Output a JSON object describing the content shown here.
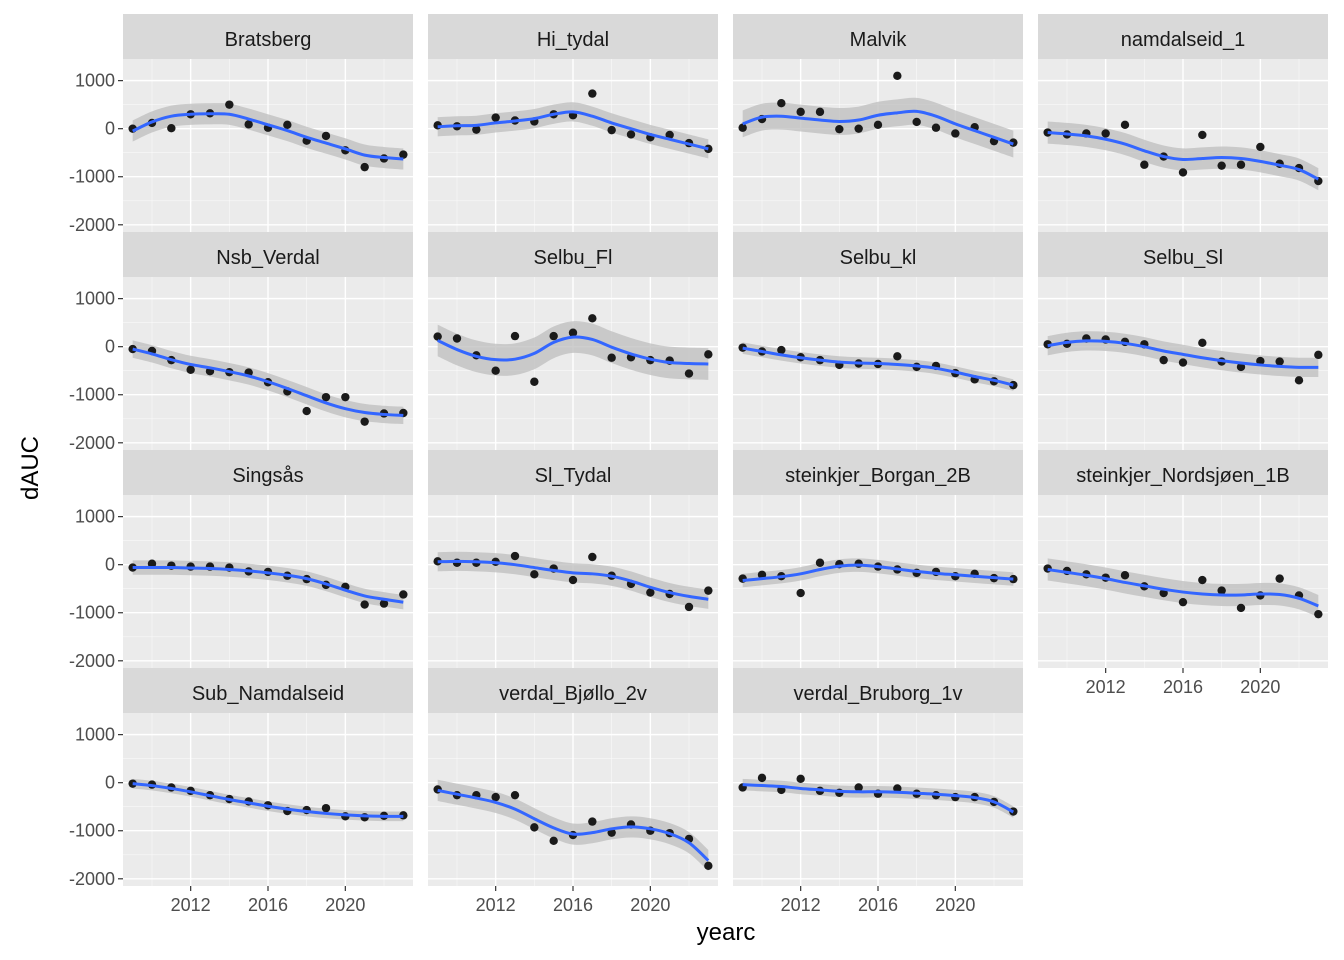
{
  "chart_data": {
    "type": "scatter",
    "facet_layout": "wrap 4 columns",
    "xlabel": "yearc",
    "ylabel": "dAUC",
    "x_ticks": [
      2012,
      2016,
      2020
    ],
    "y_ticks": [
      1000,
      0,
      -1000,
      -2000
    ],
    "xlim": [
      2008.5,
      2023.5
    ],
    "ylim": [
      -2150,
      1450
    ],
    "grid": true,
    "smooth": "loess fit with grey confidence band",
    "colors": {
      "panel_bg": "#ebebeb",
      "strip_bg": "#d9d9d9",
      "grid_major": "#ffffff",
      "points": "#1a1a1a",
      "smooth_line": "#3366ff",
      "ribbon": "#bdbdbd"
    },
    "years": [
      2009,
      2010,
      2011,
      2012,
      2013,
      2014,
      2015,
      2016,
      2017,
      2018,
      2019,
      2020,
      2021,
      2022,
      2023
    ],
    "facets": [
      {
        "name": "Bratsberg",
        "points": [
          0,
          120,
          10,
          300,
          320,
          500,
          90,
          20,
          80,
          -250,
          -150,
          -450,
          -800,
          -620,
          -540
        ],
        "smooth": [
          -50,
          140,
          260,
          300,
          310,
          300,
          200,
          80,
          -40,
          -180,
          -300,
          -420,
          -550,
          -600,
          -630
        ],
        "band": 220
      },
      {
        "name": "Hi_tydal",
        "points": [
          70,
          50,
          -20,
          230,
          170,
          150,
          300,
          280,
          730,
          -30,
          -120,
          -180,
          -130,
          -300,
          -420
        ],
        "smooth": [
          40,
          60,
          70,
          120,
          160,
          210,
          300,
          350,
          260,
          120,
          0,
          -120,
          -220,
          -320,
          -420
        ],
        "band": 200
      },
      {
        "name": "Malvik",
        "points": [
          20,
          200,
          530,
          350,
          350,
          -10,
          0,
          80,
          1100,
          140,
          20,
          -100,
          30,
          -260,
          -290
        ],
        "smooth": [
          100,
          240,
          260,
          220,
          180,
          150,
          180,
          280,
          330,
          360,
          260,
          100,
          -40,
          -180,
          -320
        ],
        "band": 280
      },
      {
        "name": "namdalseid_1",
        "points": [
          -80,
          -120,
          -100,
          -100,
          80,
          -750,
          -580,
          -910,
          -130,
          -770,
          -750,
          -380,
          -730,
          -820,
          -1090
        ],
        "smooth": [
          -80,
          -110,
          -150,
          -220,
          -320,
          -460,
          -580,
          -640,
          -620,
          -600,
          -620,
          -680,
          -760,
          -850,
          -1050
        ],
        "band": 230
      },
      {
        "name": "Nsb_Verdal",
        "points": [
          -50,
          -90,
          -280,
          -480,
          -510,
          -530,
          -540,
          -740,
          -930,
          -1340,
          -1050,
          -1050,
          -1560,
          -1390,
          -1380
        ],
        "smooth": [
          -50,
          -150,
          -270,
          -370,
          -440,
          -520,
          -610,
          -730,
          -870,
          -1020,
          -1170,
          -1290,
          -1370,
          -1410,
          -1430
        ],
        "band": 180
      },
      {
        "name": "Selbu_Fl",
        "points": [
          210,
          170,
          -180,
          -500,
          220,
          -730,
          220,
          290,
          590,
          -230,
          -220,
          -280,
          -290,
          -560,
          -160
        ],
        "smooth": [
          130,
          -60,
          -200,
          -270,
          -260,
          -140,
          90,
          200,
          150,
          -10,
          -150,
          -260,
          -330,
          -350,
          -360
        ],
        "band": 330
      },
      {
        "name": "Selbu_kl",
        "points": [
          -20,
          -100,
          -70,
          -220,
          -280,
          -380,
          -350,
          -360,
          -200,
          -420,
          -400,
          -550,
          -680,
          -720,
          -800
        ],
        "smooth": [
          -30,
          -100,
          -170,
          -230,
          -280,
          -320,
          -340,
          -350,
          -370,
          -400,
          -450,
          -530,
          -620,
          -700,
          -800
        ],
        "band": 120
      },
      {
        "name": "Selbu_Sl",
        "points": [
          50,
          60,
          170,
          150,
          100,
          50,
          -280,
          -330,
          80,
          -310,
          -420,
          -300,
          -310,
          -700,
          -170
        ],
        "smooth": [
          20,
          90,
          120,
          110,
          70,
          0,
          -90,
          -160,
          -230,
          -290,
          -340,
          -380,
          -410,
          -430,
          -430
        ],
        "band": 200
      },
      {
        "name": "Singsås",
        "points": [
          -60,
          20,
          -20,
          -40,
          -40,
          -60,
          -140,
          -150,
          -230,
          -300,
          -420,
          -460,
          -830,
          -810,
          -620
        ],
        "smooth": [
          -60,
          -60,
          -60,
          -70,
          -80,
          -100,
          -130,
          -170,
          -220,
          -290,
          -400,
          -530,
          -650,
          -720,
          -780
        ],
        "band": 150
      },
      {
        "name": "Sl_Tydal",
        "points": [
          70,
          40,
          40,
          60,
          180,
          -200,
          -80,
          -320,
          160,
          -230,
          -400,
          -580,
          -610,
          -880,
          -540
        ],
        "smooth": [
          60,
          70,
          60,
          40,
          0,
          -60,
          -120,
          -170,
          -190,
          -240,
          -340,
          -470,
          -580,
          -660,
          -720
        ],
        "band": 200
      },
      {
        "name": "steinkjer_Borgan_2B",
        "points": [
          -290,
          -210,
          -240,
          -590,
          40,
          10,
          20,
          -40,
          -100,
          -170,
          -150,
          -240,
          -190,
          -280,
          -300
        ],
        "smooth": [
          -330,
          -290,
          -250,
          -190,
          -100,
          -30,
          -10,
          -40,
          -90,
          -140,
          -180,
          -210,
          -240,
          -270,
          -300
        ],
        "band": 140
      },
      {
        "name": "steinkjer_Nordsjøen_1B",
        "points": [
          -80,
          -130,
          -200,
          -270,
          -220,
          -450,
          -590,
          -780,
          -320,
          -540,
          -900,
          -640,
          -290,
          -640,
          -1030
        ],
        "smooth": [
          -100,
          -160,
          -220,
          -290,
          -370,
          -440,
          -510,
          -570,
          -610,
          -630,
          -630,
          -610,
          -620,
          -700,
          -860
        ],
        "band": 230
      },
      {
        "name": "Sub_Namdalseid",
        "points": [
          -20,
          -40,
          -100,
          -170,
          -260,
          -340,
          -390,
          -470,
          -590,
          -570,
          -530,
          -700,
          -720,
          -690,
          -680
        ],
        "smooth": [
          -20,
          -60,
          -120,
          -190,
          -270,
          -350,
          -420,
          -490,
          -550,
          -600,
          -640,
          -670,
          -690,
          -700,
          -700
        ],
        "band": 100
      },
      {
        "name": "verdal_Bjøllo_2v",
        "points": [
          -140,
          -260,
          -260,
          -300,
          -260,
          -930,
          -1210,
          -1090,
          -810,
          -1040,
          -870,
          -1000,
          -1050,
          -1170,
          -1730
        ],
        "smooth": [
          -160,
          -240,
          -320,
          -410,
          -550,
          -750,
          -940,
          -1070,
          -1040,
          -960,
          -920,
          -960,
          -1060,
          -1250,
          -1620
        ],
        "band": 220
      },
      {
        "name": "verdal_Bruborg_1v",
        "points": [
          -100,
          100,
          -150,
          80,
          -170,
          -210,
          -100,
          -230,
          -120,
          -230,
          -260,
          -300,
          -300,
          -400,
          -600
        ],
        "smooth": [
          -40,
          -60,
          -80,
          -120,
          -150,
          -180,
          -190,
          -190,
          -200,
          -220,
          -240,
          -270,
          -310,
          -400,
          -610
        ],
        "band": 120
      }
    ]
  }
}
